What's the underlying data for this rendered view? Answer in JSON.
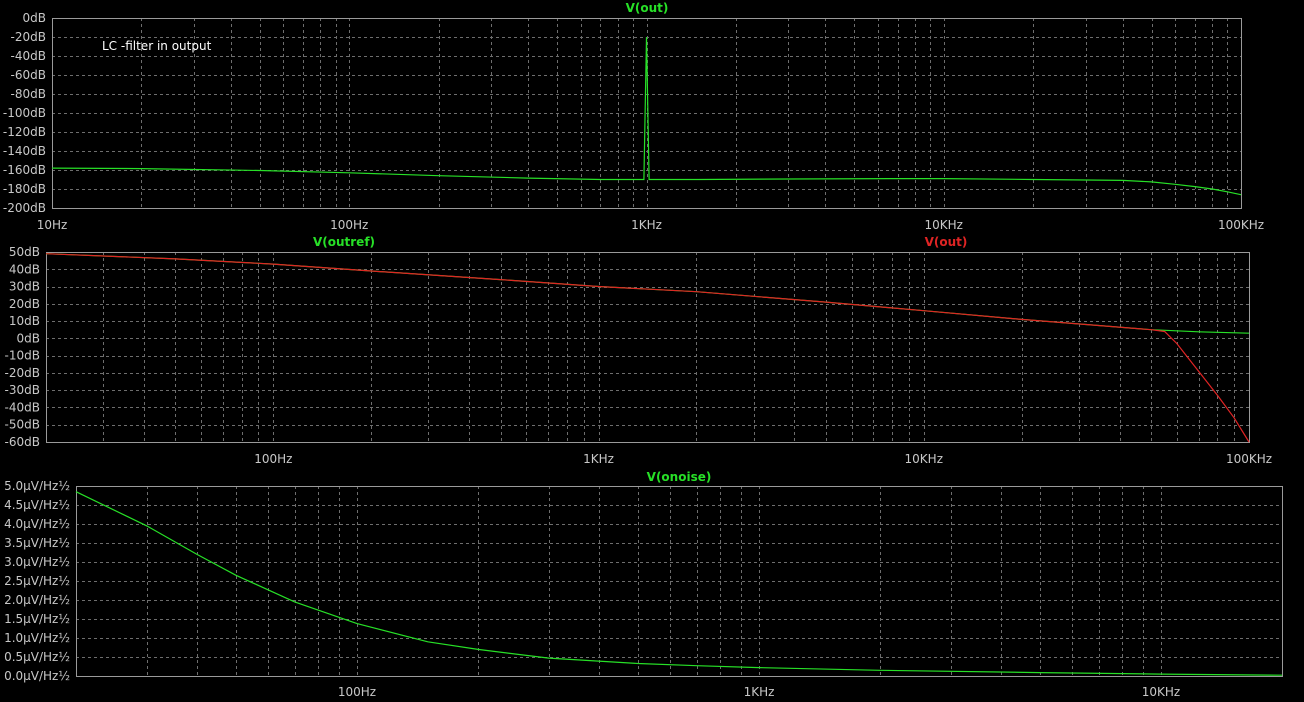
{
  "colors": {
    "background": "#000000",
    "frame": "#9a9a9a",
    "grid": "#6e6e6e",
    "tick_text": "#c8c8c8",
    "green_trace": "#27e027",
    "red_trace": "#e02424",
    "annotation_text": "#ffffff"
  },
  "chart_data": [
    {
      "type": "line",
      "x_scale": "log",
      "y_unit": "dB",
      "xlim": [
        10,
        100000
      ],
      "ylim": [
        -200,
        0
      ],
      "y_ticks": [
        0,
        -20,
        -40,
        -60,
        -80,
        -100,
        -120,
        -140,
        -160,
        -180,
        -200
      ],
      "y_tick_labels": [
        "0dB",
        "-20dB",
        "-40dB",
        "-60dB",
        "-80dB",
        "-100dB",
        "-120dB",
        "-140dB",
        "-160dB",
        "-180dB",
        "-200dB"
      ],
      "x_ticks": [
        10,
        100,
        1000,
        10000,
        100000
      ],
      "x_tick_labels": [
        "10Hz",
        "100Hz",
        "1KHz",
        "10KHz",
        "100KHz"
      ],
      "annotation": "LC -filter in output",
      "series": [
        {
          "name": "V(out)",
          "color": "#27e027",
          "x": [
            10,
            20,
            50,
            100,
            200,
            400,
            700,
            980,
            1000,
            1020,
            1500,
            3000,
            7000,
            10000,
            20000,
            30000,
            40000,
            50000,
            60000,
            70000,
            80000,
            90000,
            100000
          ],
          "y": [
            -158,
            -158.5,
            -160.5,
            -163,
            -166,
            -168.5,
            -170,
            -170,
            -20,
            -170,
            -170,
            -169.5,
            -169,
            -169,
            -170,
            -170.5,
            -171,
            -172.5,
            -175,
            -177.5,
            -180,
            -183,
            -186
          ]
        }
      ]
    },
    {
      "type": "line",
      "x_scale": "log",
      "y_unit": "dB",
      "xlim": [
        20,
        100000
      ],
      "ylim": [
        -60,
        50
      ],
      "y_ticks": [
        50,
        40,
        30,
        20,
        10,
        0,
        -10,
        -20,
        -30,
        -40,
        -50,
        -60
      ],
      "y_tick_labels": [
        "50dB",
        "40dB",
        "30dB",
        "20dB",
        "10dB",
        "0dB",
        "-10dB",
        "-20dB",
        "-30dB",
        "-40dB",
        "-50dB",
        "-60dB"
      ],
      "x_ticks": [
        100,
        1000,
        10000,
        100000
      ],
      "x_tick_labels": [
        "100Hz",
        "1KHz",
        "10KHz",
        "100KHz"
      ],
      "series": [
        {
          "name": "V(outref)",
          "color": "#27e027",
          "x": [
            20,
            50,
            100,
            200,
            500,
            1000,
            2000,
            5000,
            10000,
            20000,
            50000,
            70000,
            100000
          ],
          "y": [
            49,
            46,
            43,
            39,
            34,
            30,
            27,
            21,
            16,
            11,
            5,
            3.8,
            3
          ]
        },
        {
          "name": "V(out)",
          "color": "#e02424",
          "x": [
            20,
            50,
            100,
            200,
            500,
            1000,
            2000,
            5000,
            10000,
            20000,
            50000,
            55000,
            60000,
            70000,
            80000,
            90000,
            100000
          ],
          "y": [
            49,
            46,
            43,
            39,
            34,
            30,
            27,
            21,
            16,
            11,
            5,
            4,
            -3,
            -19,
            -33,
            -46,
            -60
          ]
        }
      ]
    },
    {
      "type": "line",
      "x_scale": "log",
      "y_unit": "µV/Hz½",
      "xlim": [
        20,
        20000
      ],
      "ylim": [
        0,
        5
      ],
      "y_ticks": [
        5,
        4.5,
        4,
        3.5,
        3,
        2.5,
        2,
        1.5,
        1,
        0.5,
        0
      ],
      "y_tick_labels": [
        "5.0µV/Hz½",
        "4.5µV/Hz½",
        "4.0µV/Hz½",
        "3.5µV/Hz½",
        "3.0µV/Hz½",
        "2.5µV/Hz½",
        "2.0µV/Hz½",
        "1.5µV/Hz½",
        "1.0µV/Hz½",
        "0.5µV/Hz½",
        "0.0µV/Hz½"
      ],
      "x_ticks": [
        100,
        1000,
        10000
      ],
      "x_tick_labels": [
        "100Hz",
        "1KHz",
        "10KHz"
      ],
      "series": [
        {
          "name": "V(onoise)",
          "color": "#27e027",
          "x": [
            20,
            30,
            40,
            50,
            70,
            100,
            150,
            200,
            300,
            500,
            700,
            1000,
            2000,
            5000,
            10000,
            20000
          ],
          "y": [
            4.85,
            3.95,
            3.2,
            2.65,
            1.95,
            1.38,
            0.9,
            0.7,
            0.47,
            0.33,
            0.27,
            0.22,
            0.15,
            0.09,
            0.05,
            0.02
          ]
        }
      ]
    }
  ]
}
